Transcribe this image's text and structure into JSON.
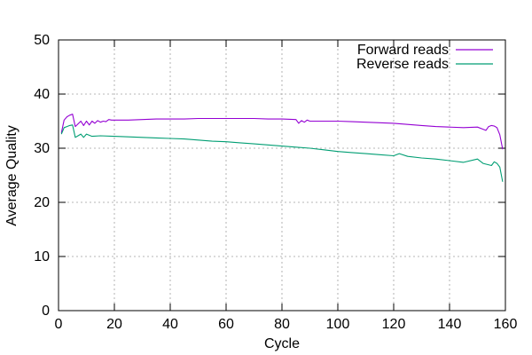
{
  "chart_data": {
    "type": "line",
    "title": "",
    "xlabel": "Cycle",
    "ylabel": "Average Quality",
    "xlim": [
      0,
      160
    ],
    "ylim": [
      0,
      50
    ],
    "xticks": [
      0,
      20,
      40,
      60,
      80,
      100,
      120,
      140,
      160
    ],
    "yticks": [
      0,
      10,
      20,
      30,
      40,
      50
    ],
    "grid": true,
    "legend_position": "top-right",
    "series": [
      {
        "name": "Forward reads",
        "color": "#9400d3",
        "x": [
          1,
          2,
          3,
          4,
          5,
          6,
          7,
          8,
          9,
          10,
          11,
          12,
          13,
          14,
          15,
          16,
          17,
          18,
          19,
          20,
          25,
          30,
          35,
          40,
          45,
          50,
          55,
          60,
          65,
          70,
          75,
          80,
          85,
          86,
          87,
          88,
          89,
          90,
          95,
          100,
          105,
          110,
          115,
          120,
          125,
          130,
          135,
          140,
          145,
          150,
          152,
          153,
          154,
          155,
          156,
          157,
          158,
          159
        ],
        "y": [
          32.8,
          35.2,
          35.8,
          36.1,
          36.3,
          34.0,
          34.5,
          35.0,
          34.2,
          35.0,
          34.3,
          35.0,
          34.6,
          35.1,
          34.8,
          35.0,
          34.9,
          35.3,
          35.2,
          35.2,
          35.2,
          35.3,
          35.4,
          35.4,
          35.4,
          35.5,
          35.5,
          35.5,
          35.5,
          35.5,
          35.4,
          35.4,
          35.3,
          34.6,
          35.1,
          34.8,
          35.2,
          35.0,
          35.0,
          35.0,
          34.9,
          34.8,
          34.7,
          34.6,
          34.4,
          34.2,
          34.0,
          33.9,
          33.8,
          33.9,
          33.5,
          33.3,
          34.0,
          34.2,
          34.1,
          33.8,
          32.5,
          29.8
        ]
      },
      {
        "name": "Reverse reads",
        "color": "#009e73",
        "x": [
          1,
          2,
          3,
          4,
          5,
          6,
          7,
          8,
          9,
          10,
          12,
          15,
          20,
          25,
          30,
          35,
          40,
          45,
          50,
          55,
          60,
          65,
          70,
          75,
          80,
          85,
          90,
          95,
          100,
          105,
          110,
          115,
          120,
          122,
          125,
          130,
          135,
          140,
          145,
          150,
          152,
          155,
          156,
          157,
          158,
          159
        ],
        "y": [
          32.6,
          33.8,
          34.0,
          34.2,
          34.3,
          32.0,
          32.3,
          32.6,
          32.0,
          32.6,
          32.2,
          32.3,
          32.2,
          32.1,
          32.0,
          31.9,
          31.8,
          31.7,
          31.5,
          31.3,
          31.2,
          31.0,
          30.8,
          30.6,
          30.4,
          30.2,
          30.0,
          29.7,
          29.4,
          29.2,
          29.0,
          28.8,
          28.6,
          29.0,
          28.5,
          28.2,
          28.0,
          27.7,
          27.4,
          28.0,
          27.2,
          26.8,
          27.5,
          27.2,
          26.5,
          23.8
        ]
      }
    ]
  }
}
